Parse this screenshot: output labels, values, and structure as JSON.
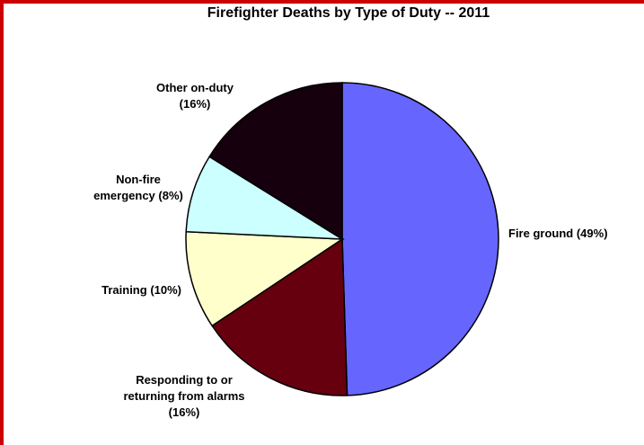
{
  "chart_data": {
    "type": "pie",
    "title": "Firefighter Deaths by Type of Duty -- 2011",
    "categories": [
      "Fire ground",
      "Responding to or returning from alarms",
      "Training",
      "Non-fire emergency",
      "Other on-duty"
    ],
    "values": [
      49,
      16,
      10,
      8,
      16
    ],
    "value_labels": [
      "(49%)",
      "(16%)",
      "(10%)",
      "(8%)",
      "(16%)"
    ],
    "colors": [
      "#6666ff",
      "#66000f",
      "#ffffcc",
      "#ccffff",
      "#16000d"
    ]
  }
}
